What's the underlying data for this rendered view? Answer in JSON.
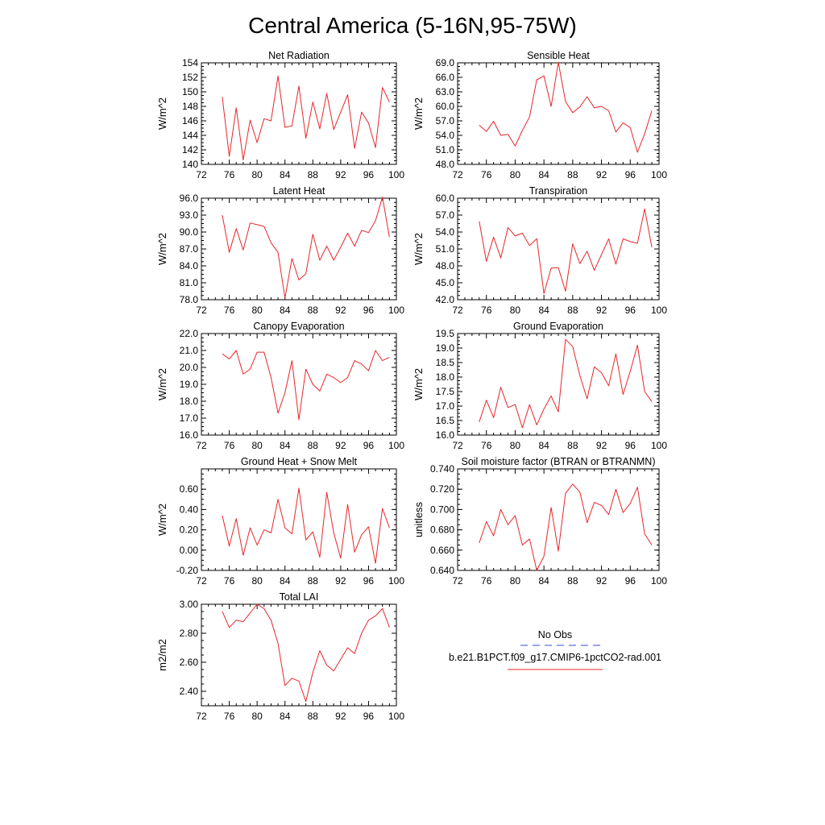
{
  "figure": {
    "title": "Central America (5-16N,95-75W)"
  },
  "legend": {
    "items": [
      {
        "label": "No Obs",
        "color": "#3a4bd9",
        "style": "dashed"
      },
      {
        "label": "b.e21.B1PCT.f09_g17.CMIP6-1pctCO2-rad.001",
        "color": "#e8262a",
        "style": "solid"
      }
    ]
  },
  "chart_data": [
    {
      "type": "line",
      "title": "Net Radiation",
      "ylabel": "W/m^2",
      "xlim": [
        72,
        100
      ],
      "xticks": [
        "72",
        "76",
        "80",
        "84",
        "88",
        "92",
        "96",
        "100"
      ],
      "ylim": [
        140,
        154
      ],
      "yticks": [
        "140",
        "142",
        "144",
        "146",
        "148",
        "150",
        "152",
        "154"
      ],
      "x": [
        75,
        76,
        77,
        78,
        79,
        80,
        81,
        82,
        83,
        84,
        85,
        86,
        87,
        88,
        89,
        90,
        91,
        92,
        93,
        94,
        95,
        96,
        97,
        98,
        99
      ],
      "series": [
        {
          "color": "#e8262a",
          "values": [
            149.3,
            141.1,
            147.8,
            140.6,
            146.1,
            143.0,
            146.3,
            146.0,
            152.2,
            145.1,
            145.3,
            150.8,
            143.6,
            148.6,
            144.9,
            149.8,
            144.8,
            147.2,
            149.6,
            142.2,
            147.2,
            145.7,
            142.3,
            150.6,
            148.6
          ]
        }
      ]
    },
    {
      "type": "line",
      "title": "Sensible Heat",
      "ylabel": "W/m^2",
      "xlim": [
        72,
        100
      ],
      "xticks": [
        "72",
        "76",
        "80",
        "84",
        "88",
        "92",
        "96",
        "100"
      ],
      "ylim": [
        48,
        69
      ],
      "yticks": [
        "48.0",
        "51.0",
        "54.0",
        "57.0",
        "60.0",
        "63.0",
        "66.0",
        "69.0"
      ],
      "x": [
        75,
        76,
        77,
        78,
        79,
        80,
        81,
        82,
        83,
        84,
        85,
        86,
        87,
        88,
        89,
        90,
        91,
        92,
        93,
        94,
        95,
        96,
        97,
        98,
        99
      ],
      "series": [
        {
          "color": "#e8262a",
          "values": [
            56.1,
            54.8,
            56.9,
            54.0,
            54.2,
            51.8,
            55.0,
            57.8,
            65.5,
            66.3,
            60.0,
            69.1,
            61.0,
            58.7,
            59.9,
            62.0,
            59.7,
            60.0,
            59.1,
            54.7,
            56.6,
            55.6,
            50.5,
            54.3,
            59.1
          ]
        }
      ]
    },
    {
      "type": "line",
      "title": "Latent Heat",
      "ylabel": "W/m^2",
      "xlim": [
        72,
        100
      ],
      "xticks": [
        "72",
        "76",
        "80",
        "84",
        "88",
        "92",
        "96",
        "100"
      ],
      "ylim": [
        78,
        96
      ],
      "yticks": [
        "78.0",
        "81.0",
        "84.0",
        "87.0",
        "90.0",
        "93.0",
        "96.0"
      ],
      "x": [
        75,
        76,
        77,
        78,
        79,
        80,
        81,
        82,
        83,
        84,
        85,
        86,
        87,
        88,
        89,
        90,
        91,
        92,
        93,
        94,
        95,
        96,
        97,
        98,
        99
      ],
      "series": [
        {
          "color": "#e8262a",
          "values": [
            93.0,
            86.4,
            90.6,
            86.8,
            91.6,
            91.3,
            91.0,
            88.1,
            86.4,
            78.3,
            85.3,
            81.5,
            82.6,
            89.6,
            85.0,
            87.5,
            85.0,
            87.3,
            89.8,
            87.5,
            90.3,
            89.9,
            92.0,
            96.2,
            89.1
          ]
        }
      ]
    },
    {
      "type": "line",
      "title": "Transpiration",
      "ylabel": "W/m^2",
      "xlim": [
        72,
        100
      ],
      "xticks": [
        "72",
        "76",
        "80",
        "84",
        "88",
        "92",
        "96",
        "100"
      ],
      "ylim": [
        42,
        60
      ],
      "yticks": [
        "42.0",
        "45.0",
        "48.0",
        "51.0",
        "54.0",
        "57.0",
        "60.0"
      ],
      "x": [
        75,
        76,
        77,
        78,
        79,
        80,
        81,
        82,
        83,
        84,
        85,
        86,
        87,
        88,
        89,
        90,
        91,
        92,
        93,
        94,
        95,
        96,
        97,
        98,
        99
      ],
      "series": [
        {
          "color": "#e8262a",
          "values": [
            55.9,
            48.8,
            53.1,
            49.4,
            54.8,
            53.3,
            53.8,
            51.6,
            52.8,
            43.1,
            47.6,
            47.7,
            43.5,
            51.9,
            48.4,
            50.6,
            47.2,
            50.0,
            52.8,
            48.3,
            52.8,
            52.3,
            52.0,
            58.1,
            51.3
          ]
        }
      ]
    },
    {
      "type": "line",
      "title": "Canopy Evaporation",
      "ylabel": "W/m^2",
      "xlim": [
        72,
        100
      ],
      "xticks": [
        "72",
        "76",
        "80",
        "84",
        "88",
        "92",
        "96",
        "100"
      ],
      "ylim": [
        16,
        22
      ],
      "yticks": [
        "16.0",
        "17.0",
        "18.0",
        "19.0",
        "20.0",
        "21.0",
        "22.0"
      ],
      "x": [
        75,
        76,
        77,
        78,
        79,
        80,
        81,
        82,
        83,
        84,
        85,
        86,
        87,
        88,
        89,
        90,
        91,
        92,
        93,
        94,
        95,
        96,
        97,
        98,
        99
      ],
      "series": [
        {
          "color": "#e8262a",
          "values": [
            20.8,
            20.5,
            21.0,
            19.6,
            19.9,
            20.9,
            20.9,
            19.4,
            17.3,
            18.5,
            20.4,
            16.9,
            19.9,
            19.0,
            18.6,
            19.6,
            19.4,
            19.1,
            19.4,
            20.4,
            20.2,
            19.8,
            21.0,
            20.4,
            20.6
          ]
        }
      ]
    },
    {
      "type": "line",
      "title": "Ground Evaporation",
      "ylabel": "W/m^2",
      "xlim": [
        72,
        100
      ],
      "xticks": [
        "72",
        "76",
        "80",
        "84",
        "88",
        "92",
        "96",
        "100"
      ],
      "ylim": [
        16,
        19.5
      ],
      "yticks": [
        "16.0",
        "16.5",
        "17.0",
        "17.5",
        "18.0",
        "18.5",
        "19.0",
        "19.5"
      ],
      "x": [
        75,
        76,
        77,
        78,
        79,
        80,
        81,
        82,
        83,
        84,
        85,
        86,
        87,
        88,
        89,
        90,
        91,
        92,
        93,
        94,
        95,
        96,
        97,
        98,
        99
      ],
      "series": [
        {
          "color": "#e8262a",
          "values": [
            16.45,
            17.2,
            16.6,
            17.65,
            16.95,
            17.05,
            16.25,
            17.05,
            16.35,
            16.9,
            17.35,
            16.8,
            19.3,
            19.05,
            18.05,
            17.25,
            18.35,
            18.15,
            17.7,
            18.8,
            17.4,
            18.2,
            19.1,
            17.5,
            17.15
          ]
        }
      ]
    },
    {
      "type": "line",
      "title": "Ground Heat + Snow Melt",
      "ylabel": "W/m^2",
      "xlim": [
        72,
        100
      ],
      "xticks": [
        "72",
        "76",
        "80",
        "84",
        "88",
        "92",
        "96",
        "100"
      ],
      "ylim": [
        -0.2,
        0.8
      ],
      "yticks": [
        "-0.20",
        "0.00",
        "0.20",
        "0.40",
        "0.60"
      ],
      "ytick_values": [
        -0.2,
        0.0,
        0.2,
        0.4,
        0.6
      ],
      "x": [
        75,
        76,
        77,
        78,
        79,
        80,
        81,
        82,
        83,
        84,
        85,
        86,
        87,
        88,
        89,
        90,
        91,
        92,
        93,
        94,
        95,
        96,
        97,
        98,
        99
      ],
      "series": [
        {
          "color": "#e8262a",
          "values": [
            0.34,
            0.04,
            0.31,
            -0.05,
            0.22,
            0.05,
            0.2,
            0.17,
            0.5,
            0.22,
            0.16,
            0.61,
            0.1,
            0.18,
            -0.07,
            0.57,
            0.17,
            -0.08,
            0.45,
            -0.02,
            0.15,
            0.23,
            -0.13,
            0.41,
            0.22
          ]
        }
      ]
    },
    {
      "type": "line",
      "title": "Soil moisture factor (BTRAN or BTRANMN)",
      "ylabel": "unitless",
      "xlim": [
        72,
        100
      ],
      "xticks": [
        "72",
        "76",
        "80",
        "84",
        "88",
        "92",
        "96",
        "100"
      ],
      "ylim": [
        0.64,
        0.74
      ],
      "yticks": [
        "0.640",
        "0.660",
        "0.680",
        "0.700",
        "0.720",
        "0.740"
      ],
      "x": [
        75,
        76,
        77,
        78,
        79,
        80,
        81,
        82,
        83,
        84,
        85,
        86,
        87,
        88,
        89,
        90,
        91,
        92,
        93,
        94,
        95,
        96,
        97,
        98,
        99
      ],
      "series": [
        {
          "color": "#e8262a",
          "values": [
            0.667,
            0.688,
            0.674,
            0.7,
            0.685,
            0.694,
            0.665,
            0.671,
            0.64,
            0.654,
            0.702,
            0.659,
            0.716,
            0.725,
            0.717,
            0.687,
            0.707,
            0.704,
            0.695,
            0.72,
            0.697,
            0.706,
            0.722,
            0.676,
            0.665
          ]
        }
      ]
    },
    {
      "type": "line",
      "title": "Total LAI",
      "ylabel": "m2/m2",
      "xlim": [
        72,
        100
      ],
      "xticks": [
        "72",
        "76",
        "80",
        "84",
        "88",
        "92",
        "96",
        "100"
      ],
      "ylim": [
        2.3,
        3.0
      ],
      "yticks": [
        "2.40",
        "2.60",
        "2.80",
        "3.00"
      ],
      "ytick_values": [
        2.4,
        2.6,
        2.8,
        3.0
      ],
      "x": [
        75,
        76,
        77,
        78,
        79,
        80,
        81,
        82,
        83,
        84,
        85,
        86,
        87,
        88,
        89,
        90,
        91,
        92,
        93,
        94,
        95,
        96,
        97,
        98,
        99
      ],
      "series": [
        {
          "color": "#e8262a",
          "values": [
            2.95,
            2.84,
            2.89,
            2.88,
            2.94,
            3.0,
            2.97,
            2.89,
            2.73,
            2.44,
            2.49,
            2.47,
            2.33,
            2.53,
            2.68,
            2.58,
            2.54,
            2.62,
            2.7,
            2.66,
            2.8,
            2.89,
            2.92,
            2.97,
            2.84
          ]
        }
      ]
    }
  ]
}
